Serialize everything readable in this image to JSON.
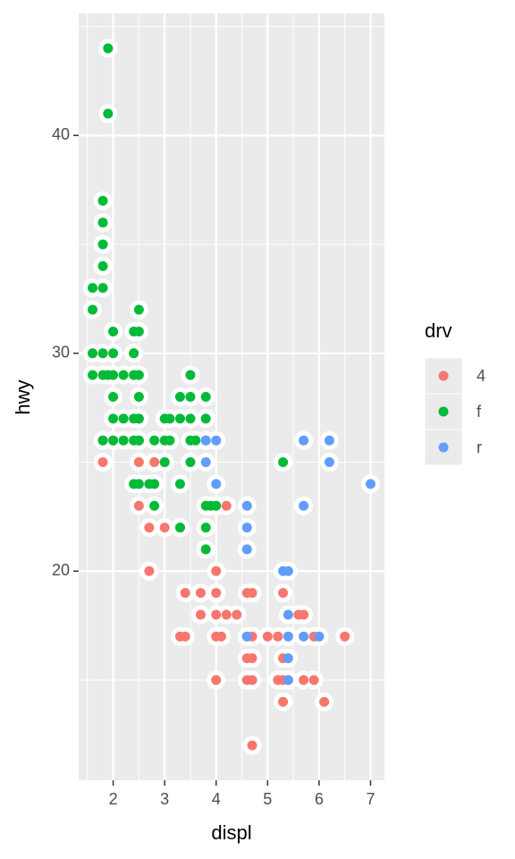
{
  "chart_data": {
    "type": "scatter",
    "x_label": "displ",
    "y_label": "hwy",
    "legend_title": "drv",
    "legend_position": "right",
    "xlim": [
      1.33,
      7.27
    ],
    "ylim": [
      10.4,
      45.6
    ],
    "xticks": [
      2,
      3,
      4,
      5,
      6,
      7
    ],
    "yticks": [
      20,
      30,
      40
    ],
    "x_minor_breaks": [
      1.5,
      2.5,
      3.5,
      4.5,
      5.5,
      6.5
    ],
    "y_minor_breaks": [
      15,
      25,
      35,
      45
    ],
    "grid": true,
    "halo_color": "#ffffff",
    "series": [
      {
        "name": "4",
        "color": "#F8766D",
        "x": [
          1.8,
          1.8,
          2.0,
          2.5,
          2.5,
          2.5,
          2.8,
          2.5,
          2.7,
          3.0,
          2.7,
          3.3,
          4.2,
          4.0,
          4.0,
          3.4,
          3.7,
          4.6,
          4.7,
          5.3,
          3.7,
          4.0,
          4.2,
          4.4,
          5.7,
          5.6,
          3.3,
          3.4,
          4.0,
          4.1,
          4.6,
          4.7,
          5.0,
          5.2,
          5.9,
          6.5,
          4.6,
          4.7,
          5.3,
          4.0,
          4.6,
          4.7,
          5.2,
          5.3,
          5.4,
          5.7,
          5.9,
          5.3,
          6.1,
          4.7,
          3.0
        ],
        "y": [
          26,
          25,
          26,
          27,
          26,
          25,
          25,
          23,
          22,
          22,
          20,
          22,
          23,
          20,
          19,
          19,
          19,
          19,
          19,
          19,
          18,
          18,
          18,
          18,
          18,
          18,
          17,
          17,
          17,
          17,
          17,
          17,
          17,
          17,
          17,
          17,
          16,
          16,
          16,
          15,
          15,
          15,
          15,
          15,
          15,
          15,
          15,
          14,
          14,
          12,
          25
        ]
      },
      {
        "name": "f",
        "color": "#00BA38",
        "x": [
          1.9,
          1.9,
          1.8,
          1.8,
          1.8,
          1.8,
          1.6,
          1.8,
          1.6,
          2.5,
          2.0,
          2.4,
          2.5,
          1.6,
          1.8,
          2.0,
          2.4,
          1.6,
          1.8,
          1.9,
          2.0,
          2.2,
          2.4,
          2.5,
          3.5,
          2.0,
          2.5,
          3.3,
          3.5,
          3.8,
          2.0,
          2.2,
          2.4,
          2.5,
          3.0,
          3.1,
          3.3,
          3.5,
          3.8,
          1.8,
          2.0,
          2.2,
          2.4,
          2.5,
          2.8,
          3.0,
          3.1,
          3.5,
          3.6,
          3.8,
          3.0,
          3.5,
          5.3,
          2.4,
          2.5,
          2.7,
          2.8,
          3.3,
          3.8,
          3.9,
          2.8,
          3.8,
          3.3,
          3.8,
          4.0
        ],
        "y": [
          44,
          41,
          37,
          36,
          35,
          34,
          33,
          33,
          32,
          32,
          31,
          31,
          31,
          30,
          30,
          30,
          30,
          29,
          29,
          29,
          29,
          29,
          29,
          29,
          29,
          28,
          28,
          28,
          28,
          28,
          27,
          27,
          27,
          27,
          27,
          27,
          27,
          27,
          27,
          26,
          26,
          26,
          26,
          26,
          26,
          26,
          26,
          26,
          26,
          26,
          25,
          25,
          25,
          24,
          24,
          24,
          24,
          24,
          23,
          23,
          23,
          22,
          22,
          21,
          23
        ]
      },
      {
        "name": "r",
        "color": "#619CFF",
        "x": [
          3.8,
          4.0,
          5.7,
          6.2,
          3.8,
          6.2,
          4.0,
          7.0,
          4.6,
          5.7,
          4.6,
          4.6,
          5.3,
          5.4,
          5.4,
          5.4,
          5.7,
          6.0,
          5.4,
          4.6,
          5.4
        ],
        "y": [
          26,
          26,
          26,
          26,
          25,
          25,
          24,
          24,
          23,
          23,
          22,
          21,
          20,
          20,
          18,
          17,
          17,
          17,
          16,
          17,
          15
        ]
      }
    ]
  }
}
